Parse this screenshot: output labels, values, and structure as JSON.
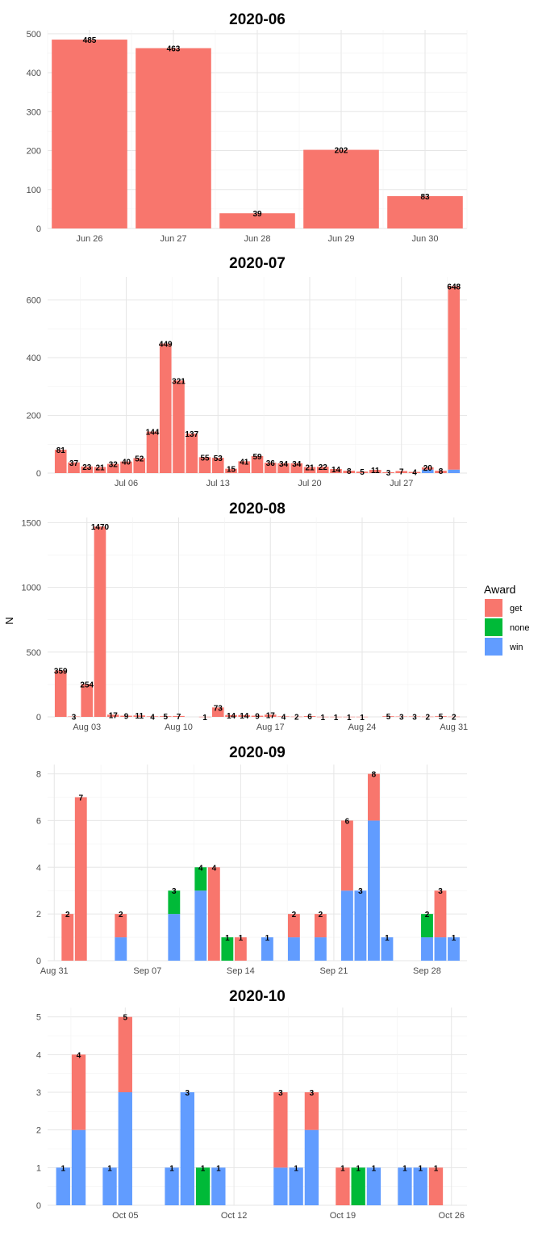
{
  "y_axis_label": "N",
  "legend": {
    "title": "Award",
    "items": [
      {
        "label": "get",
        "color": "#F8766D"
      },
      {
        "label": "none",
        "color": "#00BA38"
      },
      {
        "label": "win",
        "color": "#619CFF"
      }
    ]
  },
  "chart_data": [
    {
      "type": "bar",
      "title": "2020-06",
      "ylim": [
        0,
        510
      ],
      "y_ticks": [
        0,
        100,
        200,
        300,
        400,
        500
      ],
      "x_ticks": [
        {
          "day": 26,
          "label": "Jun 26"
        },
        {
          "day": 27,
          "label": "Jun 27"
        },
        {
          "day": 28,
          "label": "Jun 28"
        },
        {
          "day": 29,
          "label": "Jun 29"
        },
        {
          "day": 30,
          "label": "Jun 30"
        }
      ],
      "xlim": [
        25.5,
        30.5
      ],
      "bars": [
        {
          "day": 26,
          "total": 485,
          "get": 485,
          "none": 0,
          "win": 0
        },
        {
          "day": 27,
          "total": 463,
          "get": 463,
          "none": 0,
          "win": 0
        },
        {
          "day": 28,
          "total": 39,
          "get": 39,
          "none": 0,
          "win": 0
        },
        {
          "day": 29,
          "total": 202,
          "get": 202,
          "none": 0,
          "win": 0
        },
        {
          "day": 30,
          "total": 83,
          "get": 83,
          "none": 0,
          "win": 0
        }
      ]
    },
    {
      "type": "bar",
      "title": "2020-07",
      "ylim": [
        0,
        680
      ],
      "y_ticks": [
        0,
        200,
        400,
        600
      ],
      "x_ticks": [
        {
          "day": 6,
          "label": "Jul 06"
        },
        {
          "day": 13,
          "label": "Jul 13"
        },
        {
          "day": 20,
          "label": "Jul 20"
        },
        {
          "day": 27,
          "label": "Jul 27"
        }
      ],
      "xlim": [
        0,
        32
      ],
      "bars": [
        {
          "day": 1,
          "total": 81,
          "get": 81,
          "none": 0,
          "win": 0
        },
        {
          "day": 2,
          "total": 37,
          "get": 37,
          "none": 0,
          "win": 0
        },
        {
          "day": 3,
          "total": 23,
          "get": 23,
          "none": 0,
          "win": 0
        },
        {
          "day": 4,
          "total": 21,
          "get": 21,
          "none": 0,
          "win": 0
        },
        {
          "day": 5,
          "total": 32,
          "get": 32,
          "none": 0,
          "win": 0
        },
        {
          "day": 6,
          "total": 40,
          "get": 40,
          "none": 0,
          "win": 0
        },
        {
          "day": 7,
          "total": 52,
          "get": 52,
          "none": 0,
          "win": 0
        },
        {
          "day": 8,
          "total": 144,
          "get": 144,
          "none": 0,
          "win": 0
        },
        {
          "day": 9,
          "total": 449,
          "get": 449,
          "none": 0,
          "win": 0
        },
        {
          "day": 10,
          "total": 321,
          "get": 321,
          "none": 0,
          "win": 0
        },
        {
          "day": 11,
          "total": 137,
          "get": 137,
          "none": 0,
          "win": 0
        },
        {
          "day": 12,
          "total": 55,
          "get": 55,
          "none": 0,
          "win": 0
        },
        {
          "day": 13,
          "total": 53,
          "get": 53,
          "none": 0,
          "win": 0
        },
        {
          "day": 14,
          "total": 15,
          "get": 15,
          "none": 0,
          "win": 0
        },
        {
          "day": 15,
          "total": 41,
          "get": 41,
          "none": 0,
          "win": 0
        },
        {
          "day": 16,
          "total": 59,
          "get": 59,
          "none": 0,
          "win": 0
        },
        {
          "day": 17,
          "total": 36,
          "get": 36,
          "none": 0,
          "win": 0
        },
        {
          "day": 18,
          "total": 34,
          "get": 34,
          "none": 0,
          "win": 0
        },
        {
          "day": 19,
          "total": 34,
          "get": 34,
          "none": 0,
          "win": 0
        },
        {
          "day": 20,
          "total": 21,
          "get": 21,
          "none": 0,
          "win": 0
        },
        {
          "day": 21,
          "total": 22,
          "get": 22,
          "none": 0,
          "win": 0
        },
        {
          "day": 22,
          "total": 14,
          "get": 14,
          "none": 0,
          "win": 0
        },
        {
          "day": 23,
          "total": 8,
          "get": 8,
          "none": 0,
          "win": 0
        },
        {
          "day": 24,
          "total": 5,
          "get": 5,
          "none": 0,
          "win": 0
        },
        {
          "day": 25,
          "total": 11,
          "get": 11,
          "none": 0,
          "win": 0
        },
        {
          "day": 26,
          "total": 3,
          "get": 3,
          "none": 0,
          "win": 0
        },
        {
          "day": 27,
          "total": 7,
          "get": 7,
          "none": 0,
          "win": 0
        },
        {
          "day": 28,
          "total": 4,
          "get": 4,
          "none": 0,
          "win": 0
        },
        {
          "day": 29,
          "total": 20,
          "get": 8,
          "none": 0,
          "win": 12
        },
        {
          "day": 30,
          "total": 8,
          "get": 8,
          "none": 0,
          "win": 0
        },
        {
          "day": 31,
          "total": 648,
          "get": 636,
          "none": 0,
          "win": 12
        }
      ]
    },
    {
      "type": "bar",
      "title": "2020-08",
      "ylim": [
        0,
        1540
      ],
      "y_ticks": [
        0,
        500,
        1000,
        1500
      ],
      "x_ticks": [
        {
          "day": 3,
          "label": "Aug 03"
        },
        {
          "day": 10,
          "label": "Aug 10"
        },
        {
          "day": 17,
          "label": "Aug 17"
        },
        {
          "day": 24,
          "label": "Aug 24"
        },
        {
          "day": 31,
          "label": "Aug 31"
        }
      ],
      "xlim": [
        0,
        32
      ],
      "bars": [
        {
          "day": 1,
          "total": 359,
          "get": 359,
          "none": 0,
          "win": 0
        },
        {
          "day": 2,
          "total": 3,
          "get": 3,
          "none": 0,
          "win": 0
        },
        {
          "day": 3,
          "total": 254,
          "get": 254,
          "none": 0,
          "win": 0
        },
        {
          "day": 4,
          "total": 1470,
          "get": 1470,
          "none": 0,
          "win": 0
        },
        {
          "day": 5,
          "total": 17,
          "get": 17,
          "none": 0,
          "win": 0
        },
        {
          "day": 6,
          "total": 9,
          "get": 9,
          "none": 0,
          "win": 0
        },
        {
          "day": 7,
          "total": 11,
          "get": 11,
          "none": 0,
          "win": 0
        },
        {
          "day": 8,
          "total": 4,
          "get": 4,
          "none": 0,
          "win": 0
        },
        {
          "day": 9,
          "total": 5,
          "get": 5,
          "none": 0,
          "win": 0
        },
        {
          "day": 10,
          "total": 7,
          "get": 7,
          "none": 0,
          "win": 0
        },
        {
          "day": 12,
          "total": 1,
          "get": 1,
          "none": 0,
          "win": 0
        },
        {
          "day": 13,
          "total": 73,
          "get": 73,
          "none": 0,
          "win": 0
        },
        {
          "day": 14,
          "total": 14,
          "get": 14,
          "none": 0,
          "win": 0
        },
        {
          "day": 15,
          "total": 14,
          "get": 14,
          "none": 0,
          "win": 0
        },
        {
          "day": 16,
          "total": 9,
          "get": 9,
          "none": 0,
          "win": 0
        },
        {
          "day": 17,
          "total": 17,
          "get": 17,
          "none": 0,
          "win": 0
        },
        {
          "day": 18,
          "total": 4,
          "get": 4,
          "none": 0,
          "win": 0
        },
        {
          "day": 19,
          "total": 2,
          "get": 2,
          "none": 0,
          "win": 0
        },
        {
          "day": 20,
          "total": 6,
          "get": 6,
          "none": 0,
          "win": 0
        },
        {
          "day": 21,
          "total": 1,
          "get": 1,
          "none": 0,
          "win": 0
        },
        {
          "day": 22,
          "total": 1,
          "get": 1,
          "none": 0,
          "win": 0
        },
        {
          "day": 23,
          "total": 1,
          "get": 1,
          "none": 0,
          "win": 0
        },
        {
          "day": 24,
          "total": 1,
          "get": 1,
          "none": 0,
          "win": 0
        },
        {
          "day": 26,
          "total": 5,
          "get": 5,
          "none": 0,
          "win": 0
        },
        {
          "day": 27,
          "total": 3,
          "get": 3,
          "none": 0,
          "win": 0
        },
        {
          "day": 28,
          "total": 3,
          "get": 3,
          "none": 0,
          "win": 0
        },
        {
          "day": 29,
          "total": 2,
          "get": 2,
          "none": 0,
          "win": 0
        },
        {
          "day": 30,
          "total": 5,
          "get": 5,
          "none": 0,
          "win": 0
        },
        {
          "day": 31,
          "total": 2,
          "get": 2,
          "none": 0,
          "win": 0
        }
      ]
    },
    {
      "type": "bar",
      "title": "2020-09",
      "ylim": [
        0,
        8.4
      ],
      "y_ticks": [
        0,
        2,
        4,
        6,
        8
      ],
      "x_ticks": [
        {
          "day": 0,
          "label": "Aug 31"
        },
        {
          "day": 7,
          "label": "Sep 07"
        },
        {
          "day": 14,
          "label": "Sep 14"
        },
        {
          "day": 21,
          "label": "Sep 21"
        },
        {
          "day": 28,
          "label": "Sep 28"
        }
      ],
      "xlim": [
        -0.5,
        31
      ],
      "bars": [
        {
          "day": 1,
          "total": 2,
          "get": 2,
          "none": 0,
          "win": 0
        },
        {
          "day": 2,
          "total": 7,
          "get": 7,
          "none": 0,
          "win": 0
        },
        {
          "day": 5,
          "total": 2,
          "get": 1,
          "none": 0,
          "win": 1
        },
        {
          "day": 9,
          "total": 3,
          "get": 0,
          "none": 1,
          "win": 2
        },
        {
          "day": 11,
          "total": 4,
          "get": 0,
          "none": 1,
          "win": 3
        },
        {
          "day": 12,
          "total": 4,
          "get": 4,
          "none": 0,
          "win": 0
        },
        {
          "day": 13,
          "total": 1,
          "get": 0,
          "none": 1,
          "win": 0
        },
        {
          "day": 14,
          "total": 1,
          "get": 1,
          "none": 0,
          "win": 0
        },
        {
          "day": 16,
          "total": 1,
          "get": 0,
          "none": 0,
          "win": 1
        },
        {
          "day": 18,
          "total": 2,
          "get": 1,
          "none": 0,
          "win": 1
        },
        {
          "day": 20,
          "total": 2,
          "get": 1,
          "none": 0,
          "win": 1
        },
        {
          "day": 22,
          "total": 6,
          "get": 3,
          "none": 0,
          "win": 3
        },
        {
          "day": 23,
          "total": 3,
          "get": 0,
          "none": 0,
          "win": 3
        },
        {
          "day": 24,
          "total": 8,
          "get": 2,
          "none": 0,
          "win": 6
        },
        {
          "day": 25,
          "total": 1,
          "get": 0,
          "none": 0,
          "win": 1
        },
        {
          "day": 28,
          "total": 2,
          "get": 0,
          "none": 1,
          "win": 1
        },
        {
          "day": 29,
          "total": 3,
          "get": 2,
          "none": 0,
          "win": 1
        },
        {
          "day": 30,
          "total": 1,
          "get": 0,
          "none": 0,
          "win": 1
        }
      ]
    },
    {
      "type": "bar",
      "title": "2020-10",
      "ylim": [
        0,
        5.25
      ],
      "y_ticks": [
        0,
        1,
        2,
        3,
        4,
        5
      ],
      "x_ticks": [
        {
          "day": 5,
          "label": "Oct 05"
        },
        {
          "day": 12,
          "label": "Oct 12"
        },
        {
          "day": 19,
          "label": "Oct 19"
        },
        {
          "day": 26,
          "label": "Oct 26"
        }
      ],
      "xlim": [
        0,
        27
      ],
      "bars": [
        {
          "day": 1,
          "total": 1,
          "get": 0,
          "none": 0,
          "win": 1
        },
        {
          "day": 2,
          "total": 4,
          "get": 2,
          "none": 0,
          "win": 2
        },
        {
          "day": 4,
          "total": 1,
          "get": 0,
          "none": 0,
          "win": 1
        },
        {
          "day": 5,
          "total": 5,
          "get": 2,
          "none": 0,
          "win": 3
        },
        {
          "day": 8,
          "total": 1,
          "get": 0,
          "none": 0,
          "win": 1
        },
        {
          "day": 9,
          "total": 3,
          "get": 0,
          "none": 0,
          "win": 3
        },
        {
          "day": 10,
          "total": 1,
          "get": 0,
          "none": 1,
          "win": 0
        },
        {
          "day": 11,
          "total": 1,
          "get": 0,
          "none": 0,
          "win": 1
        },
        {
          "day": 15,
          "total": 3,
          "get": 2,
          "none": 0,
          "win": 1
        },
        {
          "day": 16,
          "total": 1,
          "get": 0,
          "none": 0,
          "win": 1
        },
        {
          "day": 17,
          "total": 3,
          "get": 1,
          "none": 0,
          "win": 2
        },
        {
          "day": 19,
          "total": 1,
          "get": 1,
          "none": 0,
          "win": 0
        },
        {
          "day": 20,
          "total": 1,
          "get": 0,
          "none": 1,
          "win": 0
        },
        {
          "day": 21,
          "total": 1,
          "get": 0,
          "none": 0,
          "win": 1
        },
        {
          "day": 23,
          "total": 1,
          "get": 0,
          "none": 0,
          "win": 1
        },
        {
          "day": 24,
          "total": 1,
          "get": 0,
          "none": 0,
          "win": 1
        },
        {
          "day": 25,
          "total": 1,
          "get": 1,
          "none": 0,
          "win": 0
        }
      ]
    }
  ]
}
